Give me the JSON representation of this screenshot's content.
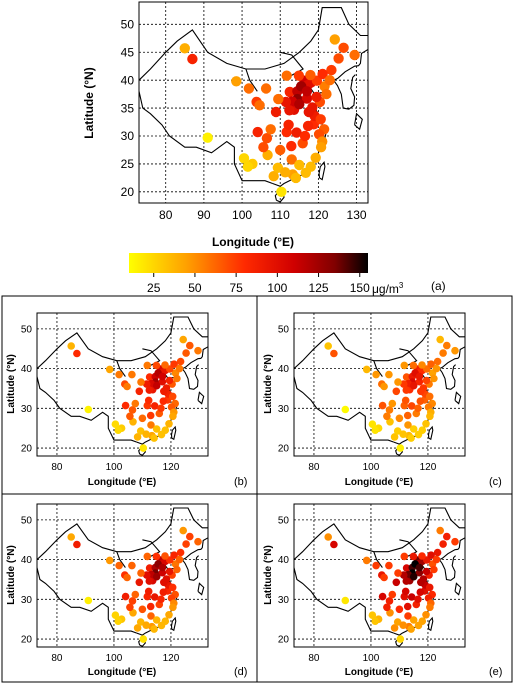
{
  "colorbar": {
    "ticks": [
      "25",
      "50",
      "75",
      "100",
      "125",
      "150"
    ],
    "unit": "μg/m",
    "unit_sup": "3",
    "range": [
      10,
      155
    ],
    "stops": [
      {
        "value": 10,
        "color": "#ffff00"
      },
      {
        "value": 45,
        "color": "#ffa000"
      },
      {
        "value": 80,
        "color": "#ff2a00"
      },
      {
        "value": 110,
        "color": "#d00000"
      },
      {
        "value": 135,
        "color": "#800000"
      },
      {
        "value": 155,
        "color": "#000000"
      }
    ]
  },
  "chart_data": [
    {
      "type": "scatter",
      "panel_label": "(a)",
      "xlabel": "Longitude (°E)",
      "ylabel": "Latitude (°N)",
      "xlim": [
        73,
        133
      ],
      "ylim": [
        18,
        54
      ],
      "xticks": [
        "80",
        "90",
        "100",
        "110",
        "120",
        "130"
      ],
      "yticks": [
        "20",
        "25",
        "30",
        "35",
        "40",
        "45",
        "50"
      ],
      "grid": true,
      "points": [
        {
          "lon": 85,
          "lat": 45.7,
          "pm": 40
        },
        {
          "lon": 87,
          "lat": 43.8,
          "pm": 85
        },
        {
          "lon": 91,
          "lat": 29.7,
          "pm": 15
        },
        {
          "lon": 98.5,
          "lat": 39.8,
          "pm": 45
        },
        {
          "lon": 101.8,
          "lat": 38.5,
          "pm": 60
        },
        {
          "lon": 103.8,
          "lat": 36.1,
          "pm": 75
        },
        {
          "lon": 106.3,
          "lat": 38.5,
          "pm": 60
        },
        {
          "lon": 111.7,
          "lat": 40.8,
          "pm": 60
        },
        {
          "lon": 112.5,
          "lat": 37.9,
          "pm": 85
        },
        {
          "lon": 114.5,
          "lat": 38.0,
          "pm": 115
        },
        {
          "lon": 116.4,
          "lat": 39.9,
          "pm": 110
        },
        {
          "lon": 117.2,
          "lat": 39.1,
          "pm": 100
        },
        {
          "lon": 115.5,
          "lat": 38.9,
          "pm": 125
        },
        {
          "lon": 114.5,
          "lat": 36.6,
          "pm": 130
        },
        {
          "lon": 113.6,
          "lat": 34.7,
          "pm": 100
        },
        {
          "lon": 117.0,
          "lat": 36.7,
          "pm": 105
        },
        {
          "lon": 118.8,
          "lat": 32.1,
          "pm": 80
        },
        {
          "lon": 121.5,
          "lat": 31.2,
          "pm": 65
        },
        {
          "lon": 120.2,
          "lat": 30.3,
          "pm": 70
        },
        {
          "lon": 114.3,
          "lat": 30.6,
          "pm": 90
        },
        {
          "lon": 112.9,
          "lat": 28.2,
          "pm": 80
        },
        {
          "lon": 115.9,
          "lat": 28.7,
          "pm": 70
        },
        {
          "lon": 119.3,
          "lat": 26.1,
          "pm": 40
        },
        {
          "lon": 113.3,
          "lat": 23.1,
          "pm": 45
        },
        {
          "lon": 108.3,
          "lat": 22.8,
          "pm": 40
        },
        {
          "lon": 110.3,
          "lat": 20.0,
          "pm": 20
        },
        {
          "lon": 106.7,
          "lat": 26.6,
          "pm": 40
        },
        {
          "lon": 102.7,
          "lat": 25.0,
          "pm": 30
        },
        {
          "lon": 104.1,
          "lat": 30.7,
          "pm": 85
        },
        {
          "lon": 106.5,
          "lat": 29.6,
          "pm": 70
        },
        {
          "lon": 108.9,
          "lat": 34.3,
          "pm": 90
        },
        {
          "lon": 123.4,
          "lat": 41.8,
          "pm": 75
        },
        {
          "lon": 125.3,
          "lat": 43.9,
          "pm": 70
        },
        {
          "lon": 126.6,
          "lat": 45.8,
          "pm": 70
        },
        {
          "lon": 121.6,
          "lat": 38.9,
          "pm": 55
        },
        {
          "lon": 120.4,
          "lat": 36.1,
          "pm": 70
        },
        {
          "lon": 117.3,
          "lat": 31.8,
          "pm": 85
        },
        {
          "lon": 119.0,
          "lat": 33.6,
          "pm": 90
        },
        {
          "lon": 118.0,
          "lat": 24.5,
          "pm": 35
        },
        {
          "lon": 114.1,
          "lat": 22.5,
          "pm": 35
        },
        {
          "lon": 116.7,
          "lat": 23.4,
          "pm": 35
        },
        {
          "lon": 122.1,
          "lat": 37.5,
          "pm": 60
        },
        {
          "lon": 118.1,
          "lat": 39.6,
          "pm": 100
        },
        {
          "lon": 119.6,
          "lat": 39.9,
          "pm": 75
        },
        {
          "lon": 113.1,
          "lat": 36.2,
          "pm": 110
        },
        {
          "lon": 112.4,
          "lat": 34.6,
          "pm": 95
        },
        {
          "lon": 118.4,
          "lat": 35.1,
          "pm": 95
        },
        {
          "lon": 115.0,
          "lat": 35.7,
          "pm": 120
        },
        {
          "lon": 114.9,
          "lat": 40.8,
          "pm": 75
        },
        {
          "lon": 117.9,
          "lat": 40.9,
          "pm": 65
        },
        {
          "lon": 111.5,
          "lat": 36.1,
          "pm": 95
        },
        {
          "lon": 109.5,
          "lat": 36.6,
          "pm": 60
        },
        {
          "lon": 110.0,
          "lat": 27.5,
          "pm": 65
        },
        {
          "lon": 111.7,
          "lat": 30.7,
          "pm": 80
        },
        {
          "lon": 107.5,
          "lat": 31.2,
          "pm": 60
        },
        {
          "lon": 105.6,
          "lat": 28.0,
          "pm": 70
        },
        {
          "lon": 113.0,
          "lat": 25.8,
          "pm": 60
        },
        {
          "lon": 121.0,
          "lat": 29.0,
          "pm": 50
        },
        {
          "lon": 120.7,
          "lat": 28.0,
          "pm": 45
        },
        {
          "lon": 120.6,
          "lat": 33.0,
          "pm": 75
        },
        {
          "lon": 116.5,
          "lat": 30.0,
          "pm": 80
        },
        {
          "lon": 117.5,
          "lat": 34.3,
          "pm": 95
        },
        {
          "lon": 112.2,
          "lat": 32.0,
          "pm": 85
        },
        {
          "lon": 104.6,
          "lat": 35.5,
          "pm": 60
        },
        {
          "lon": 129.5,
          "lat": 44.5,
          "pm": 60
        },
        {
          "lon": 124.3,
          "lat": 47.3,
          "pm": 45
        },
        {
          "lon": 100.5,
          "lat": 26.0,
          "pm": 25
        },
        {
          "lon": 101.5,
          "lat": 24.5,
          "pm": 25
        },
        {
          "lon": 109.4,
          "lat": 24.3,
          "pm": 35
        },
        {
          "lon": 111.3,
          "lat": 23.5,
          "pm": 40
        },
        {
          "lon": 115.0,
          "lat": 24.8,
          "pm": 35
        },
        {
          "lon": 121.1,
          "lat": 41.1,
          "pm": 80
        },
        {
          "lon": 117.0,
          "lat": 38.0,
          "pm": 115
        },
        {
          "lon": 119.5,
          "lat": 37.0,
          "pm": 90
        },
        {
          "lon": 123.0,
          "lat": 40.0,
          "pm": 60
        }
      ]
    },
    {
      "type": "scatter",
      "panel_label": "(b)",
      "xlabel": "Longitude (°E)",
      "ylabel": "Latitude (°N)",
      "xlim": [
        73,
        133
      ],
      "ylim": [
        18,
        54
      ],
      "xticks": [
        "80",
        "100",
        "120"
      ],
      "yticks": [
        "20",
        "30",
        "40",
        "50"
      ],
      "grid": true,
      "scale": 0.95
    },
    {
      "type": "scatter",
      "panel_label": "(c)",
      "xlabel": "Longitude (°E)",
      "ylabel": "Latitude (°N)",
      "xlim": [
        73,
        133
      ],
      "ylim": [
        18,
        54
      ],
      "xticks": [
        "80",
        "100",
        "120"
      ],
      "yticks": [
        "20",
        "30",
        "40",
        "50"
      ],
      "grid": true,
      "scale": 0.8
    },
    {
      "type": "scatter",
      "panel_label": "(d)",
      "xlabel": "Longitude (°E)",
      "ylabel": "Latitude (°N)",
      "xlim": [
        73,
        133
      ],
      "ylim": [
        18,
        54
      ],
      "xticks": [
        "80",
        "100",
        "120"
      ],
      "yticks": [
        "20",
        "30",
        "40",
        "50"
      ],
      "grid": true,
      "scale": 1.05
    },
    {
      "type": "scatter",
      "panel_label": "(e)",
      "xlabel": "Longitude (°E)",
      "ylabel": "Latitude (°N)",
      "xlim": [
        73,
        133
      ],
      "ylim": [
        18,
        54
      ],
      "xticks": [
        "80",
        "100",
        "120"
      ],
      "yticks": [
        "20",
        "30",
        "40",
        "50"
      ],
      "grid": true,
      "scale": 1.25
    }
  ],
  "boundary_lines": [
    [
      [
        73,
        40
      ],
      [
        76,
        42
      ],
      [
        80,
        45
      ],
      [
        83,
        47
      ],
      [
        87,
        49
      ],
      [
        91,
        45
      ],
      [
        96,
        43
      ],
      [
        101,
        42
      ],
      [
        106,
        42
      ],
      [
        111,
        43
      ],
      [
        115,
        45
      ],
      [
        118,
        47
      ],
      [
        120,
        49
      ],
      [
        121,
        53
      ],
      [
        126,
        53
      ],
      [
        128,
        50
      ],
      [
        131,
        48
      ],
      [
        134,
        48
      ]
    ],
    [
      [
        73,
        38
      ],
      [
        74,
        35
      ],
      [
        76,
        34
      ],
      [
        79,
        32
      ],
      [
        81,
        30
      ],
      [
        85,
        28
      ],
      [
        88,
        28
      ],
      [
        92,
        27
      ],
      [
        96,
        29
      ],
      [
        98,
        28
      ],
      [
        98,
        25
      ],
      [
        100,
        22
      ],
      [
        102,
        22
      ],
      [
        106,
        22
      ],
      [
        108,
        21.5
      ]
    ],
    [
      [
        108,
        21.5
      ],
      [
        110,
        21
      ],
      [
        111,
        21.5
      ],
      [
        113,
        22.2
      ],
      [
        115,
        22.8
      ],
      [
        117,
        23.5
      ],
      [
        119,
        25.5
      ],
      [
        120,
        27
      ],
      [
        121.5,
        29
      ],
      [
        122,
        30.5
      ],
      [
        121,
        32
      ],
      [
        120,
        34
      ],
      [
        119,
        35
      ],
      [
        120.5,
        36.5
      ],
      [
        122.5,
        37.3
      ],
      [
        121,
        37.8
      ],
      [
        119,
        37.5
      ],
      [
        118,
        38.5
      ],
      [
        118,
        39.2
      ],
      [
        120,
        40
      ],
      [
        121.5,
        40.8
      ],
      [
        122.5,
        40.5
      ],
      [
        124,
        40
      ]
    ],
    [
      [
        124,
        40
      ],
      [
        125,
        40.3
      ],
      [
        127,
        41.5
      ],
      [
        129.5,
        42.5
      ],
      [
        130.5,
        42.6
      ],
      [
        131,
        43
      ],
      [
        131.3,
        44.8
      ],
      [
        133,
        45.5
      ],
      [
        134,
        47
      ]
    ],
    [
      [
        124,
        40
      ],
      [
        125,
        39
      ],
      [
        126,
        37.5
      ],
      [
        126.5,
        35
      ],
      [
        128,
        34.8
      ],
      [
        129.3,
        35.5
      ],
      [
        129.5,
        37
      ],
      [
        128.5,
        38.5
      ],
      [
        129,
        40.5
      ],
      [
        129.7,
        41
      ]
    ],
    [
      [
        109,
        18.5
      ],
      [
        110,
        18.2
      ],
      [
        111,
        19
      ],
      [
        110.8,
        20
      ],
      [
        109.5,
        20
      ],
      [
        108.7,
        19.3
      ],
      [
        109,
        18.5
      ]
    ],
    [
      [
        120.3,
        22.5
      ],
      [
        121,
        22.2
      ],
      [
        121.7,
        24.5
      ],
      [
        121.5,
        25.3
      ],
      [
        120.5,
        24.5
      ],
      [
        120.2,
        23.3
      ],
      [
        120.3,
        22.5
      ]
    ],
    [
      [
        129.5,
        32
      ],
      [
        130.8,
        31.2
      ],
      [
        131.5,
        33
      ],
      [
        130,
        34
      ],
      [
        129.5,
        32
      ]
    ],
    [
      [
        110,
        45
      ],
      [
        113,
        44.5
      ],
      [
        116,
        42
      ],
      [
        112,
        40.5
      ]
    ],
    [
      [
        101,
        42
      ],
      [
        102,
        40
      ],
      [
        104,
        38
      ]
    ]
  ]
}
